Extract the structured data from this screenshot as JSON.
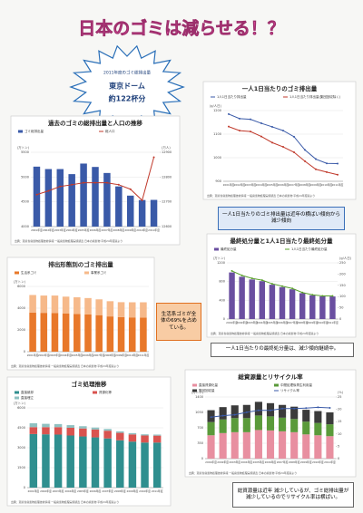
{
  "title": "日本のゴミは減らせる！？",
  "starburst": {
    "lines": [
      "2011年度のゴミ総排出量",
      "東京ドーム",
      "約122杯分"
    ]
  },
  "chart_data": [
    {
      "type": "bar",
      "title": "過去のゴミの総排出量と人口の推移",
      "unit": "(万トン)",
      "y2unit": "(万人)",
      "categories": [
        "2001年度",
        "2002年度",
        "2003年度",
        "2004年度",
        "2005年度",
        "2006年度",
        "2007年度",
        "2008年度",
        "2009年度",
        "2010年度",
        "2011年度"
      ],
      "series": [
        {
          "name": "ゴミ総排出量",
          "color": "#3a5aa8",
          "kind": "bar",
          "values": [
            5210,
            5161,
            5161,
            5059,
            5272,
            5204,
            5082,
            4811,
            4625,
            4536,
            4539
          ]
        },
        {
          "name": "総人口",
          "color": "#c0392b",
          "kind": "line",
          "axis": "y2",
          "values": [
            12729,
            12744,
            12762,
            12769,
            12777,
            12777,
            12777,
            12769,
            12751,
            12706,
            12880
          ]
        }
      ],
      "ylim": [
        4000,
        5500
      ],
      "yticks": [
        4000,
        4500,
        5000,
        5500
      ],
      "y2lim": [
        12600,
        12900
      ],
      "y2ticks": [
        12600,
        12700,
        12800,
        12900
      ],
      "grid": true,
      "source": "出典：環境省廃棄物処理技術情報 一般廃棄物処理実態調査 日本の廃棄物 平成24年度版より"
    },
    {
      "type": "line",
      "title": "一人1日当たりのゴミ排出量",
      "unit": "(g/人日)",
      "categories": [
        "2001年度",
        "2002年度",
        "2003年度",
        "2004年度",
        "2005年度",
        "2006年度",
        "2007年度",
        "2008年度",
        "2009年度",
        "2010年度",
        "2011年度"
      ],
      "series": [
        {
          "name": "1人1日当たり排出量",
          "color": "#3a5aa8",
          "kind": "line",
          "values": [
            1185,
            1166,
            1163,
            1146,
            1131,
            1115,
            1089,
            1033,
            994,
            976,
            975
          ]
        },
        {
          "name": "1人1日当たり排出量(集団回収除く)",
          "color": "#c0392b",
          "kind": "line",
          "values": [
            1132,
            1115,
            1111,
            1090,
            1064,
            1046,
            1023,
            985,
            951,
            939,
            928
          ]
        }
      ],
      "ylim": [
        900,
        1200
      ],
      "yticks": [
        900,
        1000,
        1100,
        1200
      ],
      "grid": true,
      "source": "出典：環境省廃棄物処理技術情報 一般廃棄物処理実態調査 日本の廃棄物 平成24年度版より"
    },
    {
      "type": "bar",
      "title": "最終処分量と1人1日当たり最終処分量",
      "unit": "(万トン)",
      "y2unit": "(g/人日)",
      "categories": [
        "2001年度",
        "2002年度",
        "2003年度",
        "2004年度",
        "2005年度",
        "2006年度",
        "2007年度",
        "2008年度",
        "2009年度",
        "2010年度",
        "2011年度"
      ],
      "series": [
        {
          "name": "最終処分量",
          "color": "#6a4fa0",
          "kind": "bar",
          "values": [
            995,
            903,
            845,
            809,
            733,
            681,
            635,
            553,
            507,
            484,
            482
          ]
        },
        {
          "name": "1人1日当たり最終処分量",
          "color": "#5aa02c",
          "kind": "line",
          "axis": "y2",
          "values": [
            214,
            194,
            181,
            173,
            157,
            146,
            136,
            118,
            108,
            103,
            103
          ]
        }
      ],
      "ylim": [
        0,
        1200
      ],
      "yticks": [
        0,
        400,
        800,
        1200
      ],
      "y2lim": [
        0,
        250
      ],
      "y2ticks": [
        0,
        50,
        100,
        150,
        200,
        250
      ],
      "grid": true,
      "source": "出典：環境省廃棄物処理技術情報 一般廃棄物処理実態調査 日本の廃棄物 平成24年度版より"
    },
    {
      "type": "stacked_bar",
      "title": "排出形態別のゴミ排出量",
      "unit": "(万トン)",
      "categories": [
        "2001年度",
        "2002年度",
        "2003年度",
        "2004年度",
        "2005年度",
        "2006年度",
        "2007年度",
        "2008年度",
        "2009年度",
        "2010年度",
        "2011年度"
      ],
      "series": [
        {
          "name": "生活系ゴミ",
          "color": "#e8782a",
          "kind": "bar",
          "values": [
            3600,
            3570,
            3560,
            3500,
            3470,
            3420,
            3360,
            3240,
            3180,
            3150,
            3130
          ]
        },
        {
          "name": "事業系ゴミ",
          "color": "#f6b98a",
          "kind": "bar",
          "values": [
            1610,
            1590,
            1600,
            1560,
            1530,
            1510,
            1450,
            1400,
            1370,
            1390,
            1410
          ]
        }
      ],
      "ylim": [
        0,
        6000
      ],
      "yticks": [
        0,
        2000,
        4000,
        6000
      ],
      "grid": true,
      "source": "出典：環境省廃棄物処理技術情報 一般廃棄物処理実態調査 日本の廃棄物 平成24年度版より"
    },
    {
      "type": "stacked_bar",
      "title": "ゴミ処理推移",
      "unit": "(万トン)",
      "categories": [
        "2001年度",
        "2002年度",
        "2003年度",
        "2004年度",
        "2005年度",
        "2006年度",
        "2007年度",
        "2008年度",
        "2009年度",
        "2010年度",
        "2011年度"
      ],
      "series": [
        {
          "name": "直接焼却",
          "color": "#2f8f8f",
          "kind": "bar",
          "values": [
            4030,
            4010,
            3990,
            3920,
            3850,
            3780,
            3700,
            3560,
            3460,
            3390,
            3390
          ]
        },
        {
          "name": "資源化等",
          "color": "#d9534f",
          "kind": "bar",
          "values": [
            520,
            540,
            560,
            580,
            600,
            590,
            580,
            560,
            540,
            530,
            520
          ]
        },
        {
          "name": "直接埋立",
          "color": "#8fc1c1",
          "kind": "bar",
          "values": [
            290,
            250,
            230,
            200,
            170,
            150,
            130,
            110,
            100,
            90,
            80
          ]
        }
      ],
      "ylim": [
        0,
        6000
      ],
      "yticks": [
        0,
        1500,
        3000,
        4500,
        6000
      ],
      "grid": true,
      "source": "出典：環境省廃棄物処理技術情報 一般廃棄物処理実態調査 日本の廃棄物 平成24年度版より"
    },
    {
      "type": "stacked_bar",
      "title": "総資源量とリサイクル率",
      "unit": "(万トン)",
      "y2unit": "(%)",
      "categories": [
        "2001年度",
        "2002年度",
        "2003年度",
        "2004年度",
        "2005年度",
        "2006年度",
        "2007年度",
        "2008年度",
        "2009年度",
        "2010年度",
        "2011年度"
      ],
      "series": [
        {
          "name": "直接資源化量",
          "color": "#e88fa0",
          "kind": "bar",
          "values": [
            530,
            580,
            600,
            600,
            650,
            640,
            620,
            600,
            550,
            530,
            510
          ]
        },
        {
          "name": "中間処理後再生利用量",
          "color": "#5a9a3a",
          "kind": "bar",
          "values": [
            300,
            310,
            320,
            320,
            330,
            320,
            310,
            300,
            290,
            280,
            270
          ]
        },
        {
          "name": "集団回収量",
          "color": "#3b3b3b",
          "kind": "bar",
          "values": [
            270,
            280,
            290,
            300,
            310,
            300,
            290,
            280,
            270,
            270,
            270
          ]
        },
        {
          "name": "リサイクル率",
          "color": "#3a5aa8",
          "kind": "line",
          "axis": "y2",
          "values": [
            16.8,
            17.4,
            17.8,
            18.8,
            19.6,
            19.6,
            20.3,
            20.3,
            20.5,
            20.8,
            20.6
          ]
        }
      ],
      "ylim": [
        0,
        1400
      ],
      "yticks": [
        0,
        350,
        700,
        1050,
        1400
      ],
      "y2lim": [
        0,
        25
      ],
      "y2ticks": [
        0,
        5,
        10,
        15,
        20,
        25
      ],
      "grid": true,
      "source": "出典：環境省廃棄物処理技術情報 一般廃棄物処理実態調査 日本の廃棄物 平成24年度版より"
    }
  ],
  "callouts": [
    {
      "text": "一人1日当たりのゴミ排出量は近年の横ばい傾向から減少傾向"
    },
    {
      "text": "一人1日当たりの最終処分量は、減少傾向継続中。"
    },
    {
      "text": "生活系ゴミが全体の69%を占めている。"
    },
    {
      "text": "総資源量は近年 減少しているが、ゴミ総排出量が減少しているのでリサイクル率は横ばい。"
    }
  ]
}
